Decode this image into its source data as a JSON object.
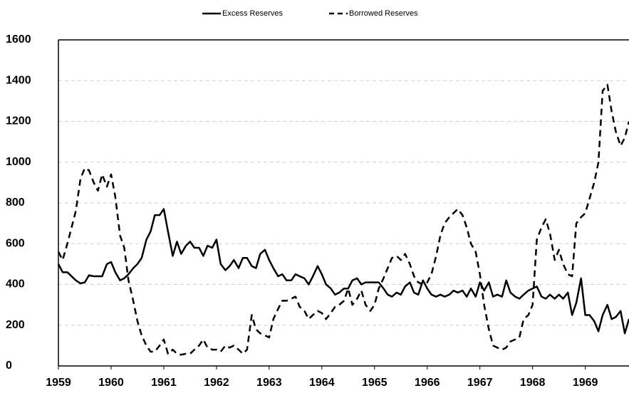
{
  "chart_data": {
    "type": "line",
    "x": [
      1959,
      1959.08,
      1959.17,
      1959.25,
      1959.33,
      1959.42,
      1959.5,
      1959.58,
      1959.67,
      1959.75,
      1959.83,
      1959.92,
      1960,
      1960.08,
      1960.17,
      1960.25,
      1960.33,
      1960.42,
      1960.5,
      1960.58,
      1960.67,
      1960.75,
      1960.83,
      1960.92,
      1961,
      1961.08,
      1961.17,
      1961.25,
      1961.33,
      1961.42,
      1961.5,
      1961.58,
      1961.67,
      1961.75,
      1961.83,
      1961.92,
      1962,
      1962.08,
      1962.17,
      1962.25,
      1962.33,
      1962.42,
      1962.5,
      1962.58,
      1962.67,
      1962.75,
      1962.83,
      1962.92,
      1963,
      1963.08,
      1963.17,
      1963.25,
      1963.33,
      1963.42,
      1963.5,
      1963.58,
      1963.67,
      1963.75,
      1963.83,
      1963.92,
      1964,
      1964.08,
      1964.17,
      1964.25,
      1964.33,
      1964.42,
      1964.5,
      1964.58,
      1964.67,
      1964.75,
      1964.83,
      1964.92,
      1965,
      1965.08,
      1965.17,
      1965.25,
      1965.33,
      1965.42,
      1965.5,
      1965.58,
      1965.67,
      1965.75,
      1965.83,
      1965.92,
      1966,
      1966.08,
      1966.17,
      1966.25,
      1966.33,
      1966.42,
      1966.5,
      1966.58,
      1966.67,
      1966.75,
      1966.83,
      1966.92,
      1967,
      1967.08,
      1967.17,
      1967.25,
      1967.33,
      1967.42,
      1967.5,
      1967.58,
      1967.67,
      1967.75,
      1967.83,
      1967.92,
      1968,
      1968.08,
      1968.17,
      1968.25,
      1968.33,
      1968.42,
      1968.5,
      1968.58,
      1968.67,
      1968.75,
      1968.83,
      1968.92,
      1969,
      1969.08,
      1969.17,
      1969.25,
      1969.33,
      1969.42,
      1969.5,
      1969.58,
      1969.67,
      1969.75,
      1969.83
    ],
    "series": [
      {
        "name": "Excess Reserves",
        "color": "#000000",
        "style": "solid",
        "values": [
          500,
          460,
          460,
          440,
          420,
          405,
          410,
          445,
          440,
          440,
          440,
          500,
          510,
          460,
          420,
          430,
          450,
          480,
          500,
          530,
          620,
          660,
          740,
          740,
          770,
          660,
          540,
          610,
          550,
          590,
          610,
          580,
          580,
          540,
          590,
          580,
          620,
          500,
          470,
          490,
          520,
          480,
          530,
          530,
          490,
          480,
          550,
          570,
          520,
          480,
          440,
          450,
          420,
          420,
          450,
          440,
          430,
          400,
          440,
          490,
          450,
          400,
          380,
          350,
          360,
          380,
          380,
          420,
          430,
          400,
          410,
          410,
          410,
          410,
          380,
          350,
          340,
          360,
          350,
          390,
          410,
          360,
          350,
          420,
          380,
          350,
          340,
          350,
          340,
          350,
          370,
          360,
          370,
          340,
          380,
          340,
          410,
          370,
          410,
          340,
          350,
          340,
          420,
          360,
          340,
          330,
          350,
          370,
          380,
          390,
          340,
          330,
          350,
          330,
          350,
          330,
          360,
          250,
          310,
          430,
          250,
          250,
          220,
          170,
          250,
          300,
          230,
          240,
          270,
          160,
          230
        ]
      },
      {
        "name": "Borrowed Reserves",
        "color": "#000000",
        "style": "dashed",
        "values": [
          560,
          520,
          600,
          680,
          760,
          920,
          970,
          960,
          900,
          860,
          940,
          880,
          940,
          830,
          640,
          580,
          420,
          320,
          220,
          150,
          100,
          70,
          70,
          100,
          130,
          60,
          80,
          60,
          55,
          60,
          60,
          80,
          100,
          130,
          90,
          80,
          80,
          70,
          100,
          90,
          100,
          80,
          60,
          80,
          250,
          180,
          160,
          150,
          140,
          230,
          280,
          320,
          320,
          330,
          340,
          290,
          270,
          230,
          250,
          270,
          260,
          230,
          260,
          290,
          300,
          320,
          380,
          300,
          330,
          370,
          300,
          270,
          300,
          380,
          430,
          480,
          530,
          540,
          520,
          550,
          500,
          440,
          410,
          400,
          410,
          450,
          540,
          640,
          700,
          730,
          750,
          770,
          740,
          680,
          600,
          560,
          450,
          300,
          180,
          100,
          90,
          80,
          90,
          120,
          130,
          140,
          230,
          250,
          300,
          620,
          680,
          720,
          650,
          520,
          570,
          500,
          450,
          440,
          700,
          730,
          750,
          820,
          900,
          1000,
          1350,
          1380,
          1250,
          1150,
          1080,
          1120,
          1200
        ]
      }
    ],
    "xlim": [
      1959,
      1969.83
    ],
    "xticks": [
      1959,
      1960,
      1961,
      1962,
      1963,
      1964,
      1965,
      1966,
      1967,
      1968,
      1969
    ],
    "ylim": [
      0,
      1600
    ],
    "yticks": [
      0,
      200,
      400,
      600,
      800,
      1000,
      1200,
      1400,
      1600
    ],
    "grid": true,
    "legend": "top"
  }
}
